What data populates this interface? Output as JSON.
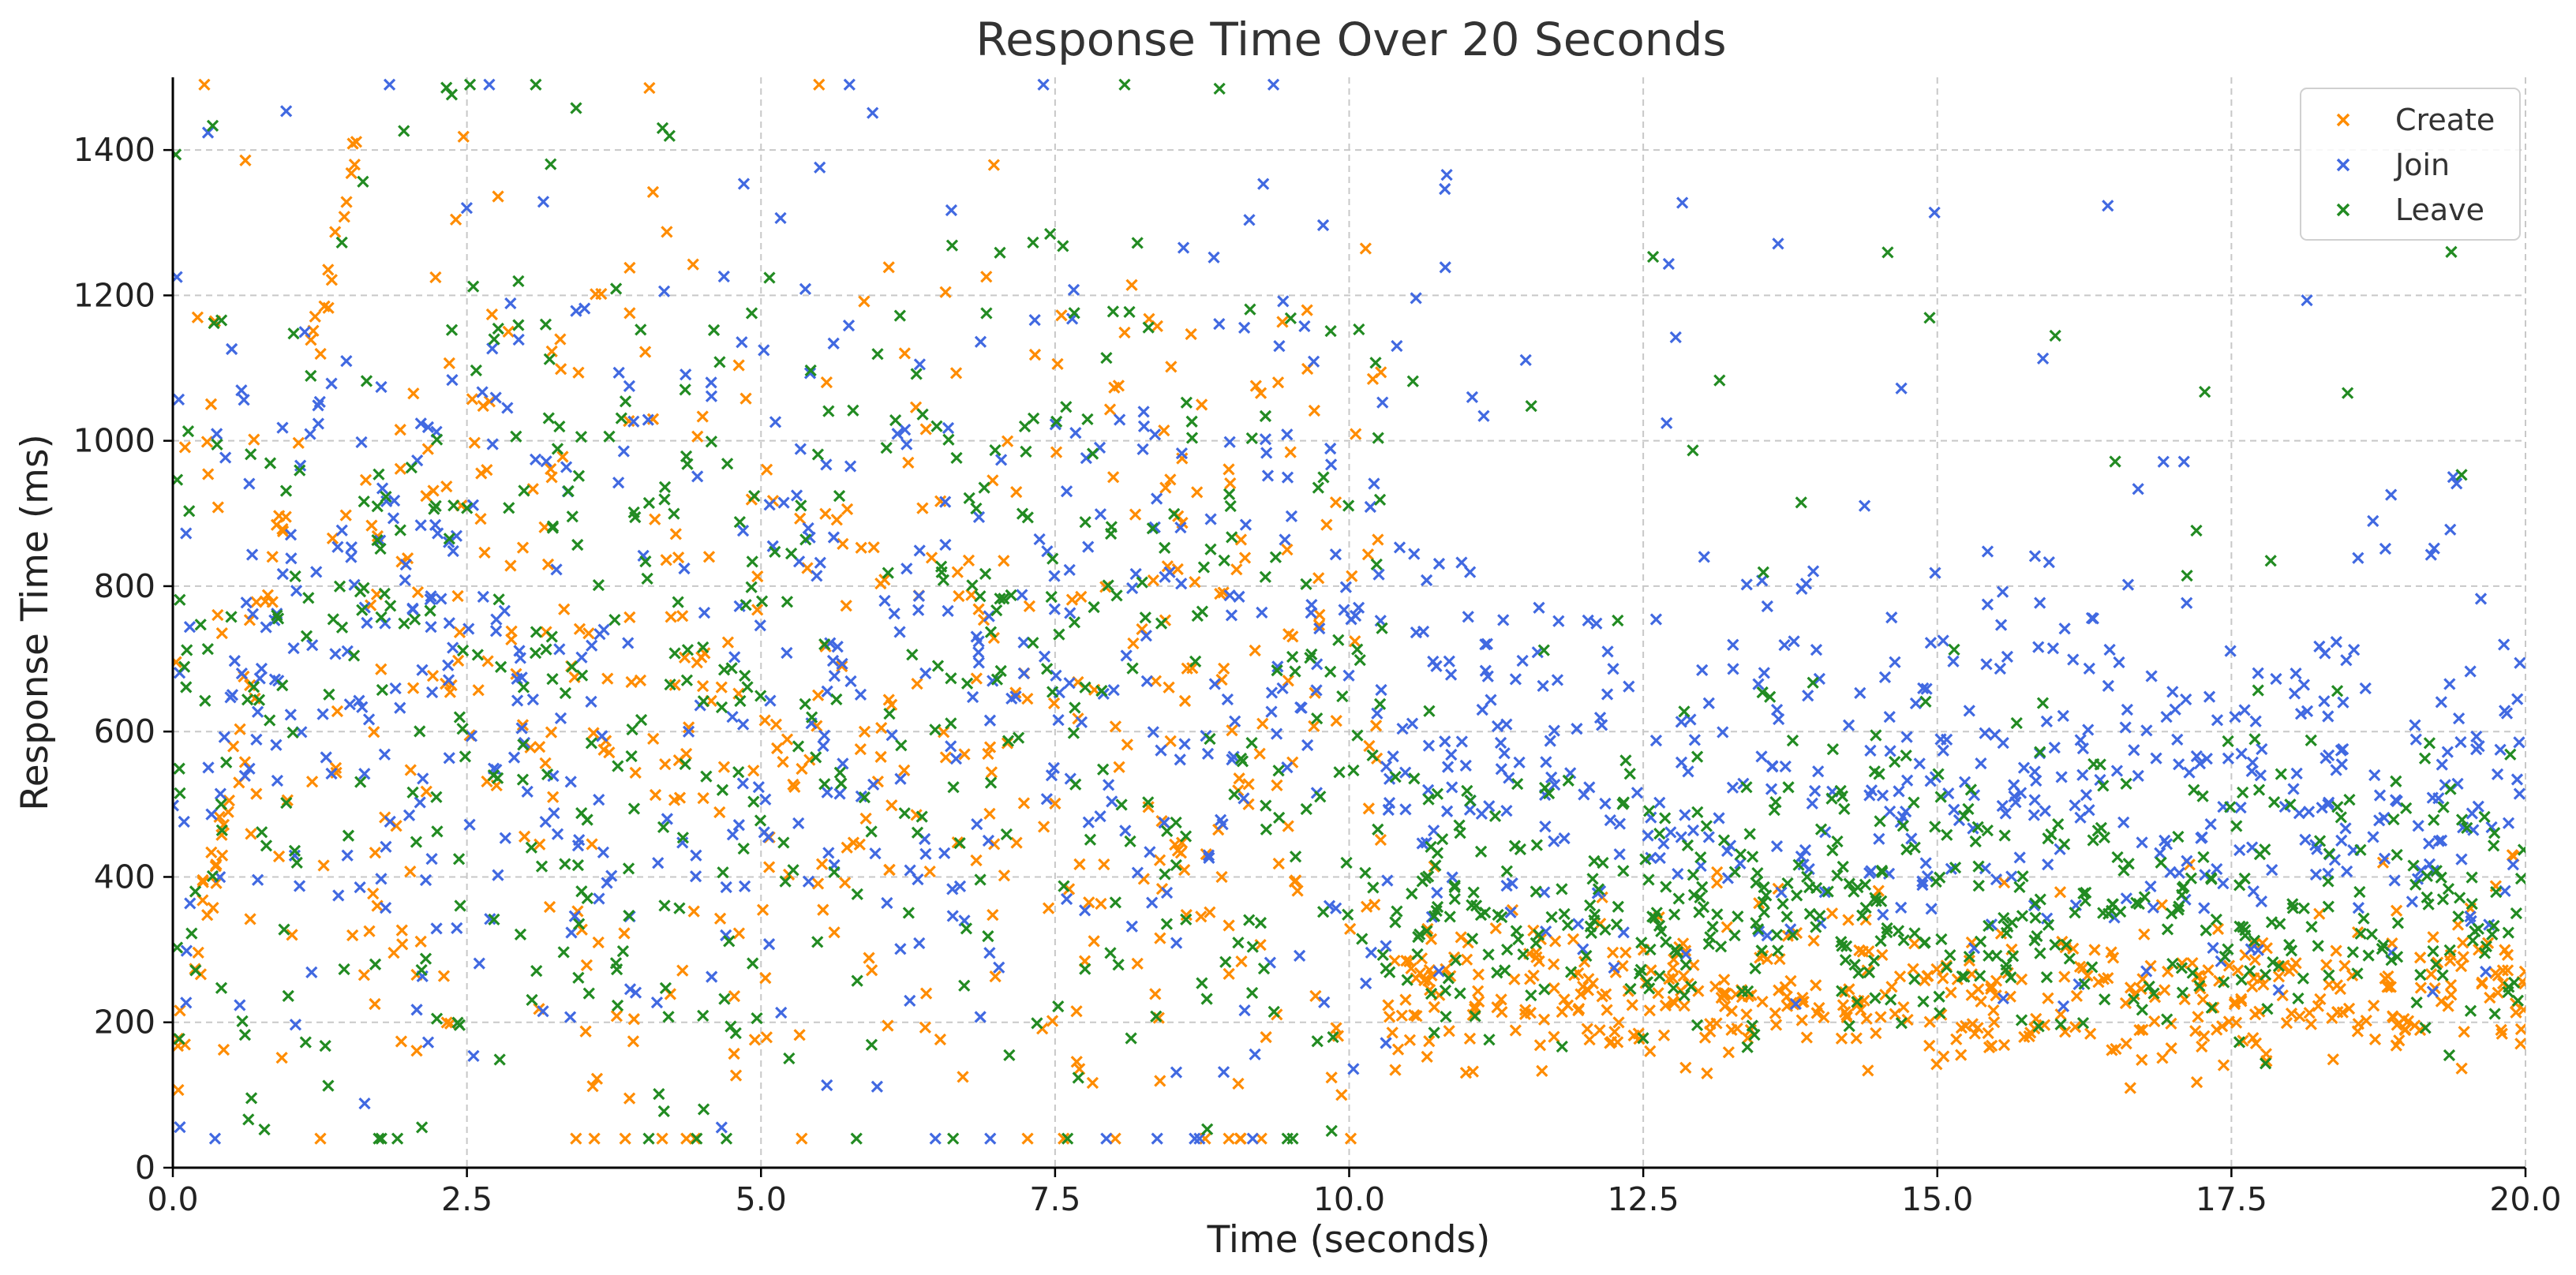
{
  "chart_data": {
    "type": "scatter",
    "title": "Response Time Over 20 Seconds",
    "xlabel": "Time (seconds)",
    "ylabel": "Response Time (ms)",
    "xlim": [
      0,
      20
    ],
    "ylim": [
      0,
      1500
    ],
    "xticks": [
      "0.0",
      "2.5",
      "5.0",
      "7.5",
      "10.0",
      "12.5",
      "15.0",
      "17.5",
      "20.0"
    ],
    "yticks": [
      "0",
      "200",
      "400",
      "600",
      "800",
      "1000",
      "1200",
      "1400"
    ],
    "grid": true,
    "legend_position": "top-right",
    "marker": "x",
    "series": [
      {
        "name": "Create",
        "color": "#ff8c00",
        "approx_points": 1000,
        "trend": "first 10 s: widely scattered ~100-1450 ms (mean ~650) with an early ramp from ~100 to ~1400 ms during 0-1.6 s; after ~10.5 s: clustered ~80-450 ms (mean ~190)"
      },
      {
        "name": "Join",
        "color": "#4169e1",
        "approx_points": 1000,
        "trend": "first 10 s: widely scattered ~150-1500 ms (mean ~700); after ~10.5 s: mostly ~150-900 ms (mean ~420) with sparse outliers up to ~1400 ms"
      },
      {
        "name": "Leave",
        "color": "#228b22",
        "approx_points": 1000,
        "trend": "first 10 s: widely scattered ~50-1480 ms (mean ~680); after ~10.5 s: clustered ~30-650 ms (mean ~280) with a few outliers near 1000-1300 ms"
      }
    ]
  }
}
